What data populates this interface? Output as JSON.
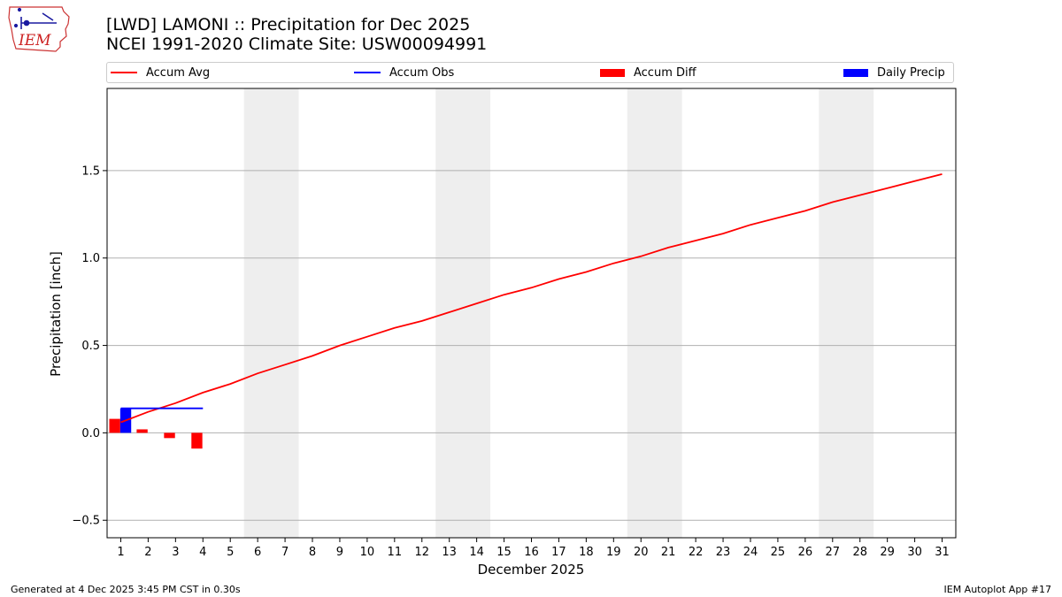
{
  "logo": {
    "text": "IEM",
    "icon": "iowa-state-outline-icon"
  },
  "title": {
    "line1": "[LWD] LAMONI :: Precipitation for Dec 2025",
    "line2": "NCEI 1991-2020 Climate Site: USW00094991"
  },
  "legend": [
    {
      "label": "Accum Avg",
      "kind": "line",
      "color": "#ff0000"
    },
    {
      "label": "Accum Obs",
      "kind": "line",
      "color": "#0000ff"
    },
    {
      "label": "Accum Diff",
      "kind": "box",
      "color": "#ff0000"
    },
    {
      "label": "Daily Precip",
      "kind": "box",
      "color": "#0000ff"
    }
  ],
  "chart_data": {
    "type": "line",
    "xlabel": "December 2025",
    "ylabel": "Precipitation [inch]",
    "xlim": [
      0.5,
      31.5
    ],
    "ylim": [
      -0.6,
      1.97
    ],
    "yticks": [
      -0.5,
      0.0,
      0.5,
      1.0,
      1.5
    ],
    "ytick_labels": [
      "−0.5",
      "0.0",
      "0.5",
      "1.0",
      "1.5"
    ],
    "xticks": [
      1,
      2,
      3,
      4,
      5,
      6,
      7,
      8,
      9,
      10,
      11,
      12,
      13,
      14,
      15,
      16,
      17,
      18,
      19,
      20,
      21,
      22,
      23,
      24,
      25,
      26,
      27,
      28,
      29,
      30,
      31
    ],
    "grid": "horizontal",
    "weekend_shading": [
      [
        6,
        7
      ],
      [
        13,
        14
      ],
      [
        20,
        21
      ],
      [
        27,
        28
      ]
    ],
    "series": [
      {
        "name": "Accum Avg",
        "kind": "line",
        "color": "#ff0000",
        "x": [
          1,
          2,
          3,
          4,
          5,
          6,
          7,
          8,
          9,
          10,
          11,
          12,
          13,
          14,
          15,
          16,
          17,
          18,
          19,
          20,
          21,
          22,
          23,
          24,
          25,
          26,
          27,
          28,
          29,
          30,
          31
        ],
        "values": [
          0.06,
          0.12,
          0.17,
          0.23,
          0.28,
          0.34,
          0.39,
          0.44,
          0.5,
          0.55,
          0.6,
          0.64,
          0.69,
          0.74,
          0.79,
          0.83,
          0.88,
          0.92,
          0.97,
          1.01,
          1.06,
          1.1,
          1.14,
          1.19,
          1.23,
          1.27,
          1.32,
          1.36,
          1.4,
          1.44,
          1.48
        ]
      },
      {
        "name": "Accum Obs",
        "kind": "line",
        "color": "#0000ff",
        "x": [
          1,
          2,
          3,
          4
        ],
        "values": [
          0.14,
          0.14,
          0.14,
          0.14
        ]
      },
      {
        "name": "Accum Diff",
        "kind": "bar",
        "color": "#ff0000",
        "x": [
          1,
          2,
          3,
          4
        ],
        "values": [
          0.08,
          0.02,
          -0.03,
          -0.09
        ]
      },
      {
        "name": "Daily Precip",
        "kind": "bar",
        "color": "#0000ff",
        "x": [
          1
        ],
        "values": [
          0.14
        ]
      }
    ]
  },
  "footer": {
    "left": "Generated at 4 Dec 2025 3:45 PM CST in 0.30s",
    "right": "IEM Autoplot App #17"
  }
}
